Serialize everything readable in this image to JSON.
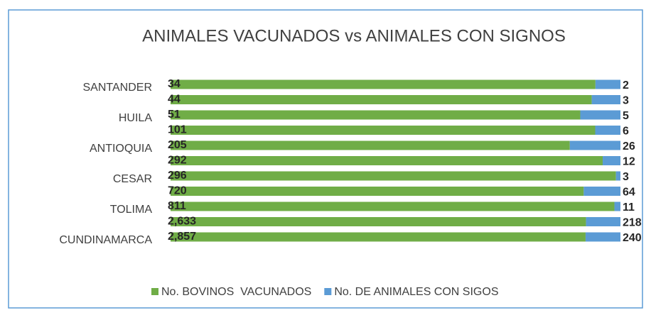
{
  "chart_data": {
    "type": "bar",
    "orientation": "horizontal",
    "stacked": "percent",
    "title": "ANIMALES VACUNADOS vs ANIMALES CON SIGNOS",
    "categories": [
      "SANTANDER",
      null,
      "HUILA",
      null,
      "ANTIOQUIA",
      null,
      "CESAR",
      null,
      "TOLIMA",
      null,
      "CUNDINAMARCA"
    ],
    "series": [
      {
        "name": "No. BOVINOS  VACUNADOS",
        "color": "#70ad47",
        "values": [
          34,
          44,
          51,
          101,
          205,
          292,
          296,
          720,
          811,
          2633,
          2857
        ],
        "value_labels": [
          "34",
          "44",
          "51",
          "101",
          "205",
          "292",
          "296",
          "720",
          "811",
          "2,633",
          "2,857"
        ]
      },
      {
        "name": "No. DE ANIMALES CON SIGOS",
        "color": "#5b9bd5",
        "values": [
          2,
          3,
          5,
          6,
          26,
          12,
          3,
          64,
          11,
          218,
          240
        ]
      }
    ],
    "legend": "bottom"
  }
}
